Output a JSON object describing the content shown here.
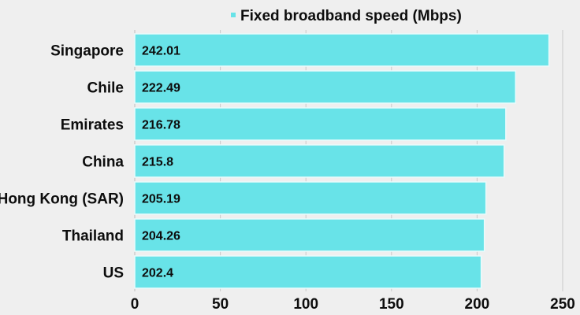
{
  "chart_data": {
    "type": "bar",
    "orientation": "horizontal",
    "categories": [
      "Singapore",
      "Chile",
      "Emirates",
      "China",
      "Hong Kong (SAR)",
      "Thailand",
      "US"
    ],
    "series": [
      {
        "name": "Fixed broadband speed (Mbps)",
        "values": [
          242.01,
          222.49,
          216.78,
          215.8,
          205.19,
          204.26,
          202.4
        ],
        "value_labels": [
          "242.01",
          "222.49",
          "216.78",
          "215.8",
          "205.19",
          "204.26",
          "202.4"
        ]
      }
    ],
    "xticks": [
      0,
      50,
      100,
      150,
      200,
      250
    ],
    "xlim": [
      0,
      250
    ],
    "grid": "vertical",
    "legend_position": "top",
    "bar_color": "#68e3e8",
    "bar_edge_color": "#e9fbfc"
  }
}
